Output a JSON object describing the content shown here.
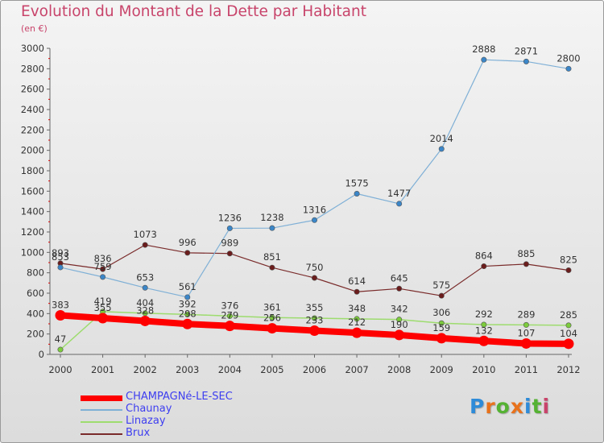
{
  "title": "Evolution du Montant de la Dette par Habitant",
  "subtitle": "(en €)",
  "logo": {
    "text": "Proxiti",
    "colors": [
      "#2e8bd8",
      "#e8721c",
      "#55b233",
      "#e8721c",
      "#2e8bd8",
      "#55b233",
      "#c8446b"
    ]
  },
  "chart_data": {
    "type": "line",
    "title": "Evolution du Montant de la Dette par Habitant",
    "ylabel": "(en €)",
    "xlabel": "",
    "ylim": [
      0,
      3000
    ],
    "yticks": [
      0,
      200,
      400,
      600,
      800,
      1000,
      1200,
      1400,
      1600,
      1800,
      2000,
      2200,
      2400,
      2600,
      2800,
      3000
    ],
    "categories": [
      "2000",
      "2001",
      "2002",
      "2003",
      "2004",
      "2005",
      "2006",
      "2007",
      "2008",
      "2009",
      "2010",
      "2011",
      "2012"
    ],
    "grid": false,
    "legend_position": "bottom-left",
    "series": [
      {
        "name": "CHAMPAGNé-LE-SEC",
        "color": "#ff0000",
        "values": [
          383,
          355,
          328,
          298,
          279,
          256,
          233,
          212,
          190,
          159,
          132,
          107,
          104
        ]
      },
      {
        "name": "Chaunay",
        "color": "#7fb0d6",
        "values": [
          853,
          759,
          653,
          561,
          1236,
          1238,
          1316,
          1575,
          1477,
          2014,
          2888,
          2871,
          2800
        ]
      },
      {
        "name": "Linazay",
        "color": "#9ddc6e",
        "values": [
          47,
          419,
          404,
          392,
          376,
          361,
          355,
          348,
          342,
          306,
          292,
          289,
          285
        ]
      },
      {
        "name": "Brux",
        "color": "#7a2a2a",
        "values": [
          893,
          836,
          1073,
          996,
          989,
          851,
          750,
          614,
          645,
          575,
          864,
          885,
          825
        ]
      }
    ]
  }
}
